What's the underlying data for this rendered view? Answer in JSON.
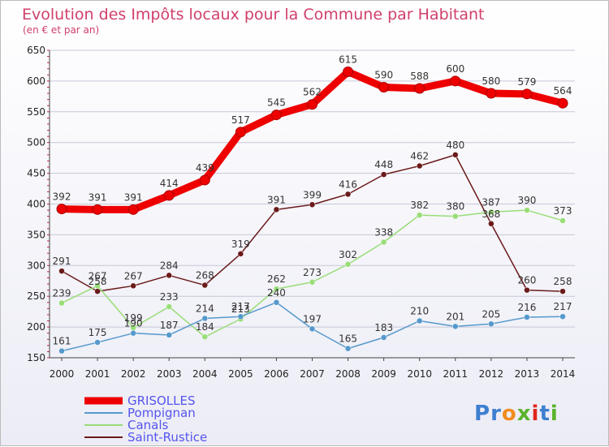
{
  "chart_data": {
    "type": "line",
    "title": "Evolution des Impôts locaux pour la Commune par Habitant",
    "subtitle": "(en € et par an)",
    "x": [
      "2000",
      "2001",
      "2002",
      "2003",
      "2004",
      "2005",
      "2006",
      "2007",
      "2008",
      "2009",
      "2010",
      "2011",
      "2012",
      "2013",
      "2014"
    ],
    "ylim": [
      150,
      650
    ],
    "yticks": [
      "150",
      "200",
      "250",
      "300",
      "350",
      "400",
      "450",
      "500",
      "550",
      "600",
      "650"
    ],
    "grid": "horizontal",
    "legend_position": "bottom-left",
    "series": [
      {
        "name": "Saint-Rustice",
        "color": "#6b1a1a",
        "values": [
          291,
          258,
          267,
          284,
          268,
          319,
          391,
          399,
          416,
          448,
          462,
          480,
          368,
          260,
          258
        ],
        "labels": [
          "291",
          "258",
          "267",
          "284",
          "268",
          "319",
          "391",
          "399",
          "416",
          "448",
          "462",
          "480",
          "368",
          "260",
          "258"
        ]
      },
      {
        "name": "Canals",
        "color": "#99dd77",
        "values": [
          239,
          267,
          199,
          233,
          184,
          213,
          262,
          273,
          302,
          338,
          382,
          380,
          387,
          390,
          373
        ],
        "labels": [
          "239",
          "267",
          "199",
          "233",
          "184",
          "213",
          "262",
          "273",
          "302",
          "338",
          "382",
          "380",
          "387",
          "390",
          "373"
        ]
      },
      {
        "name": "Pompignan",
        "color": "#5599cc",
        "values": [
          161,
          175,
          190,
          187,
          214,
          217,
          240,
          197,
          165,
          183,
          210,
          201,
          205,
          216,
          217
        ],
        "labels": [
          "161",
          "175",
          "190",
          "187",
          "214",
          "217",
          "240",
          "197",
          "165",
          "183",
          "210",
          "201",
          "205",
          "216",
          "217"
        ]
      },
      {
        "name": "GRISOLLES",
        "color": "#ee0000",
        "values": [
          392,
          391,
          391,
          414,
          439,
          517,
          545,
          562,
          615,
          590,
          588,
          600,
          580,
          579,
          564
        ],
        "labels": [
          "392",
          "391",
          "391",
          "414",
          "439",
          "517",
          "545",
          "562",
          "615",
          "590",
          "588",
          "600",
          "580",
          "579",
          "564"
        ]
      }
    ],
    "legend": [
      {
        "name": "GRISOLLES",
        "color": "#ee0000",
        "text_color": "#5555ee"
      },
      {
        "name": "Pompignan",
        "color": "#5599cc",
        "text_color": "#5555ee"
      },
      {
        "name": "Canals",
        "color": "#99dd77",
        "text_color": "#5555ee"
      },
      {
        "name": "Saint-Rustice",
        "color": "#6b1a1a",
        "text_color": "#5555ee"
      }
    ]
  },
  "logo": {
    "text": "Proxiti",
    "letters": [
      {
        "ch": "P",
        "color": "#3d7fd0"
      },
      {
        "ch": "r",
        "color": "#3d7fd0"
      },
      {
        "ch": "o",
        "color": "#f28c1e"
      },
      {
        "ch": "x",
        "color": "#5ab32c"
      },
      {
        "ch": "i",
        "color": "#e0261a"
      },
      {
        "ch": "t",
        "color": "#3d7fd0"
      },
      {
        "ch": "i",
        "color": "#5ab32c"
      }
    ]
  }
}
